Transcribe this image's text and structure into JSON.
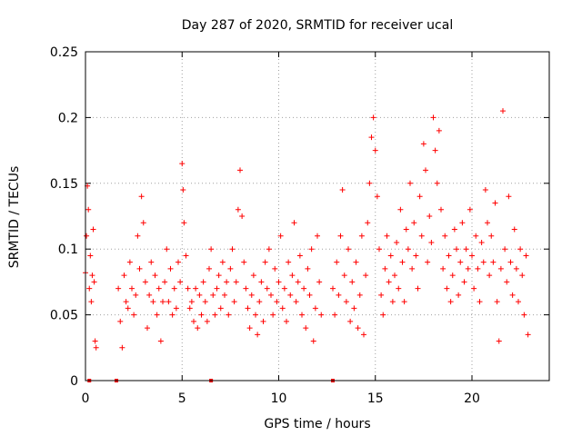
{
  "chart_data": {
    "type": "scatter",
    "title": "Day 287 of 2020, SRMTID for receiver ucal",
    "xlabel": "GPS time / hours",
    "ylabel": "SRMTID / TECUs",
    "xlim": [
      0,
      24
    ],
    "ylim": [
      0,
      0.25
    ],
    "x_ticks": [
      0,
      5,
      10,
      15,
      20
    ],
    "x_tick_labels": [
      "0",
      "5",
      "10",
      "15",
      "20"
    ],
    "y_ticks": [
      0,
      0.05,
      0.1,
      0.15,
      0.2,
      0.25
    ],
    "y_tick_labels": [
      "0",
      "0.05",
      "0.1",
      "0.15",
      "0.2",
      "0.25"
    ],
    "grid": true,
    "marker": "+",
    "color": "#ff0000",
    "series": [
      {
        "points": [
          [
            0.0,
            0.082
          ],
          [
            0.05,
            0.11
          ],
          [
            0.1,
            0.148
          ],
          [
            0.15,
            0.13
          ],
          [
            0.2,
            0.07
          ],
          [
            0.25,
            0.095
          ],
          [
            0.3,
            0.06
          ],
          [
            0.35,
            0.08
          ],
          [
            0.4,
            0.115
          ],
          [
            0.45,
            0.075
          ],
          [
            0.5,
            0.03
          ],
          [
            0.55,
            0.025
          ],
          [
            1.7,
            0.07
          ],
          [
            1.8,
            0.045
          ],
          [
            1.9,
            0.025
          ],
          [
            2.0,
            0.08
          ],
          [
            2.1,
            0.06
          ],
          [
            2.2,
            0.055
          ],
          [
            2.3,
            0.09
          ],
          [
            2.4,
            0.07
          ],
          [
            2.5,
            0.05
          ],
          [
            2.6,
            0.065
          ],
          [
            2.7,
            0.11
          ],
          [
            2.8,
            0.085
          ],
          [
            2.9,
            0.14
          ],
          [
            3.0,
            0.12
          ],
          [
            3.1,
            0.075
          ],
          [
            3.2,
            0.04
          ],
          [
            3.3,
            0.065
          ],
          [
            3.4,
            0.09
          ],
          [
            3.5,
            0.06
          ],
          [
            3.6,
            0.08
          ],
          [
            3.7,
            0.05
          ],
          [
            3.8,
            0.07
          ],
          [
            3.9,
            0.03
          ],
          [
            4.0,
            0.06
          ],
          [
            4.1,
            0.075
          ],
          [
            4.2,
            0.1
          ],
          [
            4.3,
            0.06
          ],
          [
            4.4,
            0.085
          ],
          [
            4.5,
            0.05
          ],
          [
            4.6,
            0.07
          ],
          [
            4.7,
            0.055
          ],
          [
            4.8,
            0.09
          ],
          [
            4.9,
            0.075
          ],
          [
            5.0,
            0.165
          ],
          [
            5.05,
            0.145
          ],
          [
            5.1,
            0.12
          ],
          [
            5.2,
            0.095
          ],
          [
            5.3,
            0.07
          ],
          [
            5.4,
            0.055
          ],
          [
            5.5,
            0.06
          ],
          [
            5.6,
            0.045
          ],
          [
            5.7,
            0.07
          ],
          [
            5.8,
            0.04
          ],
          [
            5.9,
            0.065
          ],
          [
            6.0,
            0.05
          ],
          [
            6.1,
            0.075
          ],
          [
            6.2,
            0.06
          ],
          [
            6.3,
            0.045
          ],
          [
            6.4,
            0.085
          ],
          [
            6.5,
            0.1
          ],
          [
            6.6,
            0.065
          ],
          [
            6.7,
            0.05
          ],
          [
            6.8,
            0.07
          ],
          [
            6.9,
            0.08
          ],
          [
            7.0,
            0.055
          ],
          [
            7.1,
            0.09
          ],
          [
            7.2,
            0.065
          ],
          [
            7.3,
            0.075
          ],
          [
            7.4,
            0.05
          ],
          [
            7.5,
            0.085
          ],
          [
            7.6,
            0.1
          ],
          [
            7.7,
            0.06
          ],
          [
            7.8,
            0.075
          ],
          [
            7.9,
            0.13
          ],
          [
            8.0,
            0.16
          ],
          [
            8.1,
            0.125
          ],
          [
            8.2,
            0.09
          ],
          [
            8.3,
            0.07
          ],
          [
            8.4,
            0.055
          ],
          [
            8.5,
            0.04
          ],
          [
            8.6,
            0.065
          ],
          [
            8.7,
            0.08
          ],
          [
            8.8,
            0.05
          ],
          [
            8.9,
            0.035
          ],
          [
            9.0,
            0.06
          ],
          [
            9.1,
            0.075
          ],
          [
            9.2,
            0.045
          ],
          [
            9.3,
            0.09
          ],
          [
            9.4,
            0.07
          ],
          [
            9.5,
            0.1
          ],
          [
            9.6,
            0.065
          ],
          [
            9.7,
            0.05
          ],
          [
            9.8,
            0.085
          ],
          [
            9.9,
            0.06
          ],
          [
            10.0,
            0.075
          ],
          [
            10.1,
            0.11
          ],
          [
            10.2,
            0.055
          ],
          [
            10.3,
            0.07
          ],
          [
            10.4,
            0.045
          ],
          [
            10.5,
            0.09
          ],
          [
            10.6,
            0.065
          ],
          [
            10.7,
            0.08
          ],
          [
            10.8,
            0.12
          ],
          [
            10.9,
            0.06
          ],
          [
            11.0,
            0.075
          ],
          [
            11.1,
            0.095
          ],
          [
            11.2,
            0.05
          ],
          [
            11.3,
            0.07
          ],
          [
            11.4,
            0.04
          ],
          [
            11.5,
            0.085
          ],
          [
            11.6,
            0.065
          ],
          [
            11.7,
            0.1
          ],
          [
            11.8,
            0.03
          ],
          [
            11.9,
            0.055
          ],
          [
            12.0,
            0.11
          ],
          [
            12.1,
            0.075
          ],
          [
            12.2,
            0.05
          ],
          [
            12.8,
            0.07
          ],
          [
            12.9,
            0.05
          ],
          [
            13.0,
            0.09
          ],
          [
            13.1,
            0.065
          ],
          [
            13.2,
            0.11
          ],
          [
            13.3,
            0.145
          ],
          [
            13.4,
            0.08
          ],
          [
            13.5,
            0.06
          ],
          [
            13.6,
            0.1
          ],
          [
            13.7,
            0.045
          ],
          [
            13.8,
            0.075
          ],
          [
            13.9,
            0.055
          ],
          [
            14.0,
            0.09
          ],
          [
            14.1,
            0.04
          ],
          [
            14.2,
            0.065
          ],
          [
            14.3,
            0.11
          ],
          [
            14.4,
            0.035
          ],
          [
            14.5,
            0.08
          ],
          [
            14.6,
            0.12
          ],
          [
            14.7,
            0.15
          ],
          [
            14.8,
            0.185
          ],
          [
            14.9,
            0.2
          ],
          [
            15.0,
            0.175
          ],
          [
            15.1,
            0.14
          ],
          [
            15.2,
            0.1
          ],
          [
            15.3,
            0.065
          ],
          [
            15.4,
            0.05
          ],
          [
            15.5,
            0.085
          ],
          [
            15.6,
            0.11
          ],
          [
            15.7,
            0.075
          ],
          [
            15.8,
            0.095
          ],
          [
            15.9,
            0.06
          ],
          [
            16.0,
            0.08
          ],
          [
            16.1,
            0.105
          ],
          [
            16.2,
            0.07
          ],
          [
            16.3,
            0.13
          ],
          [
            16.4,
            0.09
          ],
          [
            16.5,
            0.06
          ],
          [
            16.6,
            0.115
          ],
          [
            16.7,
            0.1
          ],
          [
            16.8,
            0.15
          ],
          [
            16.9,
            0.085
          ],
          [
            17.0,
            0.12
          ],
          [
            17.1,
            0.095
          ],
          [
            17.2,
            0.07
          ],
          [
            17.3,
            0.14
          ],
          [
            17.4,
            0.11
          ],
          [
            17.5,
            0.18
          ],
          [
            17.6,
            0.16
          ],
          [
            17.7,
            0.09
          ],
          [
            17.8,
            0.125
          ],
          [
            17.9,
            0.105
          ],
          [
            18.0,
            0.2
          ],
          [
            18.1,
            0.175
          ],
          [
            18.2,
            0.15
          ],
          [
            18.3,
            0.19
          ],
          [
            18.4,
            0.13
          ],
          [
            18.5,
            0.085
          ],
          [
            18.6,
            0.11
          ],
          [
            18.7,
            0.07
          ],
          [
            18.8,
            0.095
          ],
          [
            18.9,
            0.06
          ],
          [
            19.0,
            0.08
          ],
          [
            19.1,
            0.115
          ],
          [
            19.2,
            0.1
          ],
          [
            19.3,
            0.065
          ],
          [
            19.4,
            0.09
          ],
          [
            19.5,
            0.12
          ],
          [
            19.6,
            0.075
          ],
          [
            19.7,
            0.1
          ],
          [
            19.8,
            0.085
          ],
          [
            19.9,
            0.13
          ],
          [
            20.0,
            0.095
          ],
          [
            20.1,
            0.07
          ],
          [
            20.2,
            0.11
          ],
          [
            20.3,
            0.085
          ],
          [
            20.4,
            0.06
          ],
          [
            20.5,
            0.105
          ],
          [
            20.6,
            0.09
          ],
          [
            20.7,
            0.145
          ],
          [
            20.8,
            0.12
          ],
          [
            20.9,
            0.08
          ],
          [
            21.0,
            0.11
          ],
          [
            21.1,
            0.09
          ],
          [
            21.2,
            0.135
          ],
          [
            21.3,
            0.06
          ],
          [
            21.4,
            0.03
          ],
          [
            21.5,
            0.085
          ],
          [
            21.6,
            0.205
          ],
          [
            21.7,
            0.1
          ],
          [
            21.8,
            0.075
          ],
          [
            21.9,
            0.14
          ],
          [
            22.0,
            0.09
          ],
          [
            22.1,
            0.065
          ],
          [
            22.2,
            0.115
          ],
          [
            22.3,
            0.085
          ],
          [
            22.4,
            0.06
          ],
          [
            22.5,
            0.1
          ],
          [
            22.6,
            0.08
          ],
          [
            22.7,
            0.05
          ],
          [
            22.8,
            0.095
          ],
          [
            22.9,
            0.035
          ]
        ]
      }
    ],
    "zero_marks_x": [
      0.2,
      1.6,
      6.5,
      12.8
    ]
  }
}
